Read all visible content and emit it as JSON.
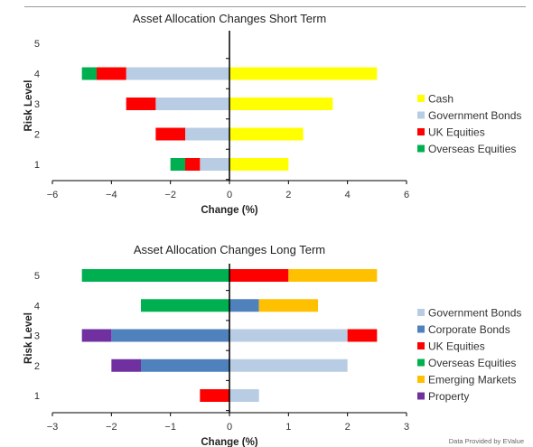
{
  "colors": {
    "cash": "#FFFF00",
    "government_bonds": "#B8CCE4",
    "corporate_bonds": "#4F81BD",
    "uk_equities": "#FF0000",
    "overseas_equities": "#00B050",
    "emerging_markets": "#FFC000",
    "property": "#7030A0"
  },
  "credit": "Data Provided by EValue",
  "chart_data": [
    {
      "type": "bar",
      "orientation": "horizontal",
      "stacked": true,
      "title": "Asset Allocation Changes Short Term",
      "xlabel": "Change (%)",
      "ylabel": "Risk Level",
      "xlim": [
        -6,
        6
      ],
      "xticks": [
        -6,
        -4,
        -2,
        0,
        2,
        4,
        6
      ],
      "categories": [
        "1",
        "2",
        "3",
        "4",
        "5"
      ],
      "legend_position": "right",
      "series": [
        {
          "name": "Cash",
          "color": "#FFFF00",
          "values": [
            2,
            2.5,
            3.5,
            5,
            0
          ]
        },
        {
          "name": "Government Bonds",
          "color": "#B8CCE4",
          "values": [
            -1,
            -1.5,
            -2.5,
            -3.5,
            0
          ]
        },
        {
          "name": "UK Equities",
          "color": "#FF0000",
          "values": [
            -0.5,
            -1,
            -1,
            -1,
            0
          ]
        },
        {
          "name": "Overseas Equities",
          "color": "#00B050",
          "values": [
            -0.5,
            0,
            0,
            -0.5,
            0
          ]
        }
      ]
    },
    {
      "type": "bar",
      "orientation": "horizontal",
      "stacked": true,
      "title": "Asset Allocation Changes Long Term",
      "xlabel": "Change (%)",
      "ylabel": "Risk Level",
      "xlim": [
        -3,
        3
      ],
      "xticks": [
        -3,
        -2,
        -1,
        0,
        1,
        2,
        3
      ],
      "categories": [
        "1",
        "2",
        "3",
        "4",
        "5"
      ],
      "legend_position": "right",
      "series": [
        {
          "name": "Government Bonds",
          "color": "#B8CCE4",
          "values": [
            0.5,
            2,
            2,
            0,
            0
          ]
        },
        {
          "name": "Corporate Bonds",
          "color": "#4F81BD",
          "values": [
            0,
            -1.5,
            -2,
            0.5,
            0
          ]
        },
        {
          "name": "UK Equities",
          "color": "#FF0000",
          "values": [
            -0.5,
            0,
            0.5,
            0,
            1
          ]
        },
        {
          "name": "Overseas Equities",
          "color": "#00B050",
          "values": [
            0,
            0,
            0,
            -1.5,
            -2.5
          ]
        },
        {
          "name": "Emerging Markets",
          "color": "#FFC000",
          "values": [
            0,
            0,
            0,
            1,
            1.5
          ]
        },
        {
          "name": "Property",
          "color": "#7030A0",
          "values": [
            0,
            -0.5,
            -0.5,
            0,
            0
          ]
        }
      ]
    }
  ]
}
